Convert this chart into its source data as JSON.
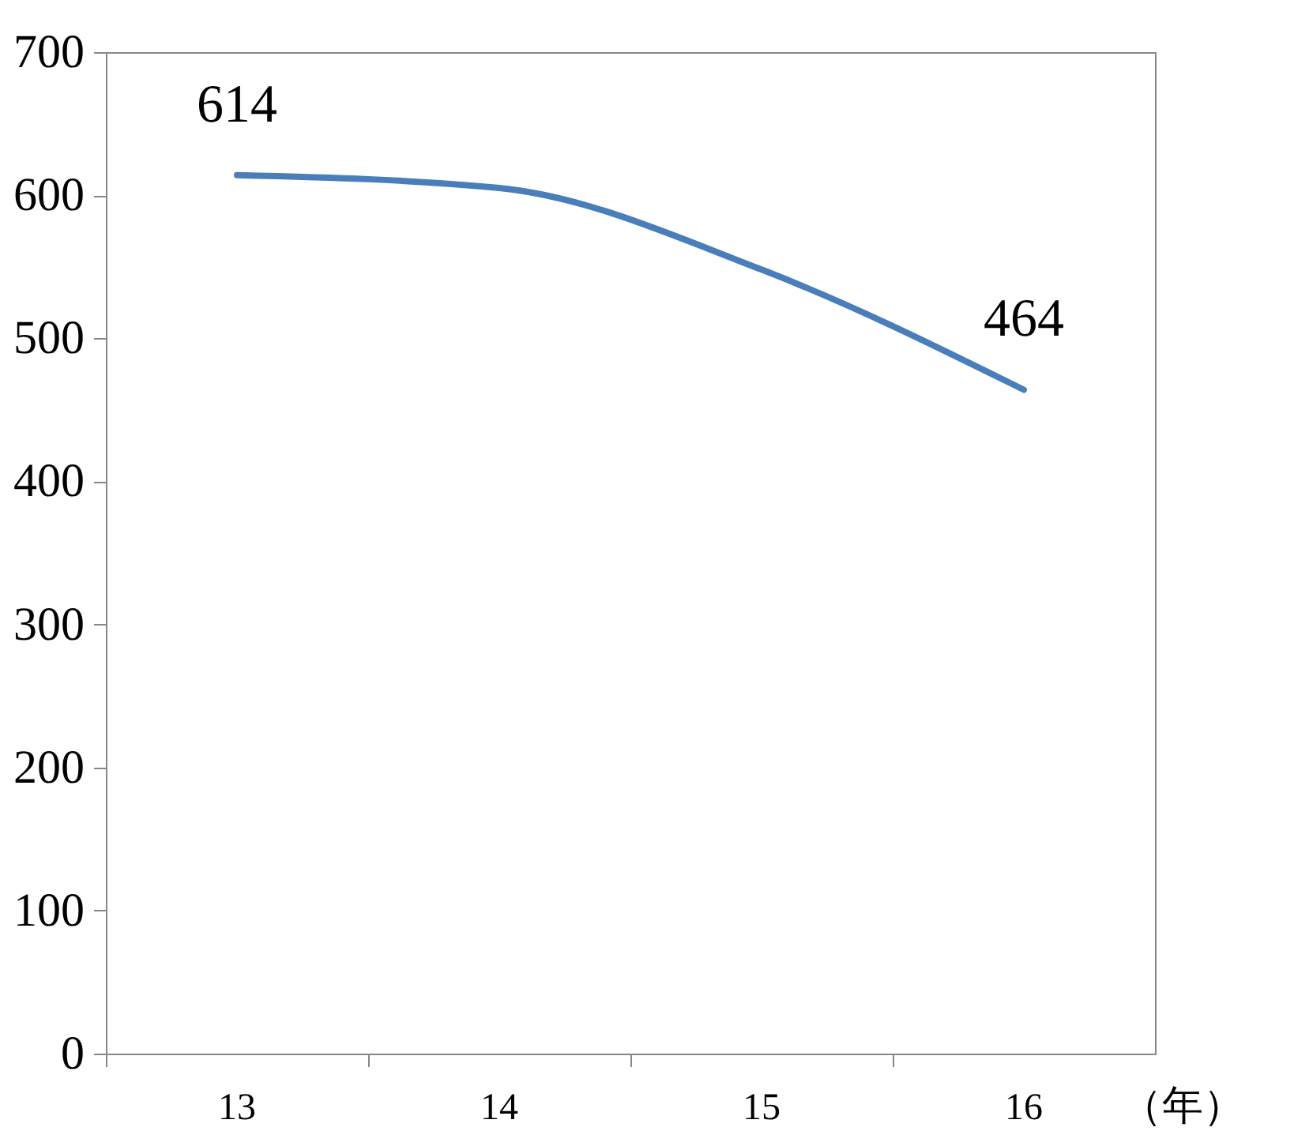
{
  "chart_data": {
    "type": "line",
    "categories": [
      "13",
      "14",
      "15",
      "16"
    ],
    "xlabel": "（年）",
    "series": [
      {
        "color": "#4a7ebb",
        "values": [
          614,
          605,
          548,
          464
        ],
        "value_labels": [
          "614",
          null,
          null,
          "464"
        ]
      }
    ],
    "ylim": [
      0,
      700
    ],
    "yticks": [
      0,
      100,
      200,
      300,
      400,
      500,
      600,
      700
    ],
    "grid": false,
    "legend": false,
    "marker": "none",
    "line_style": "solid"
  }
}
